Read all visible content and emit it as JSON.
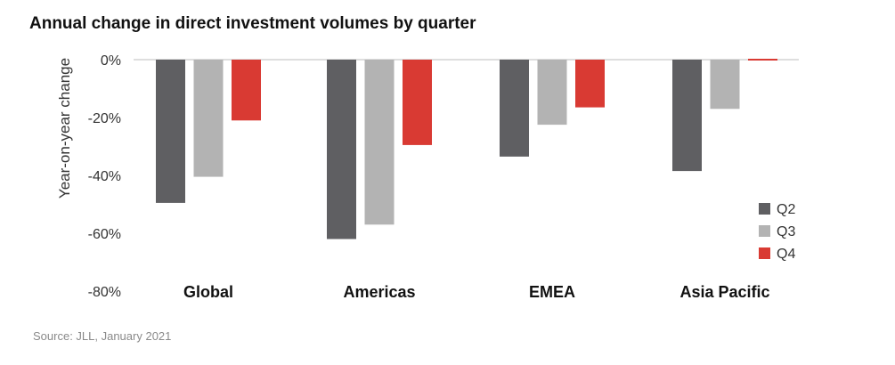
{
  "chart_data": {
    "type": "bar",
    "title": "Annual change in direct investment volumes by quarter",
    "ylabel": "Year-on-year change",
    "xlabel": "",
    "categories": [
      "Global",
      "Americas",
      "EMEA",
      "Asia Pacific"
    ],
    "series": [
      {
        "name": "Q2",
        "color": "#5f5f62",
        "values": [
          -49.5,
          -62,
          -33.5,
          -38.5
        ]
      },
      {
        "name": "Q3",
        "color": "#b3b3b3",
        "values": [
          -40.5,
          -57,
          -22.5,
          -17
        ]
      },
      {
        "name": "Q4",
        "color": "#d93a33",
        "values": [
          -21,
          -29.5,
          -16.5,
          0.5
        ]
      }
    ],
    "ylim": [
      -80,
      0
    ],
    "yticks": [
      0,
      -20,
      -40,
      -60,
      -80
    ],
    "ytick_labels": [
      "0%",
      "-20%",
      "-40%",
      "-60%",
      "-80%"
    ],
    "legend": "right",
    "grid": false
  },
  "source": "Source: JLL, January 2021"
}
